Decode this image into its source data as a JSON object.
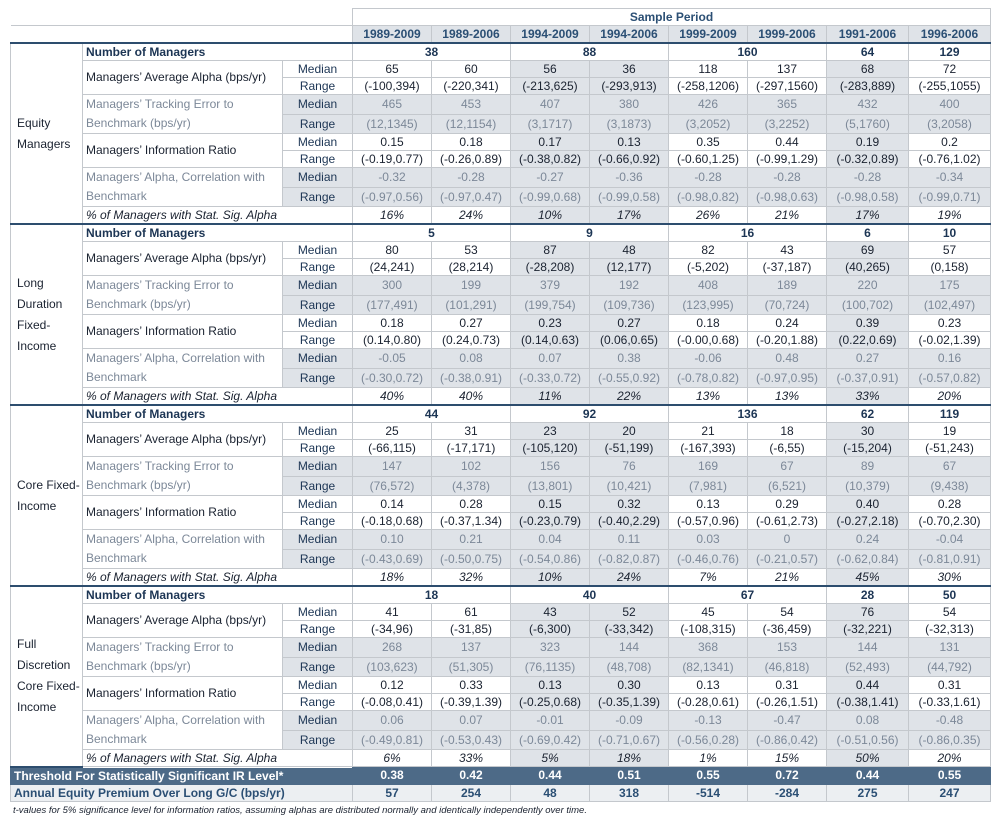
{
  "header": {
    "sample_period": "Sample Period",
    "periods": [
      "1989-2009",
      "1989-2006",
      "1994-2009",
      "1994-2006",
      "1999-2009",
      "1999-2006",
      "1991-2006",
      "1996-2006"
    ]
  },
  "labels": {
    "num_managers": "Number of Managers",
    "avg_alpha": "Managers’ Average Alpha (bps/yr)",
    "tracking_error": "Managers’ Tracking Error to Benchmark (bps/yr)",
    "info_ratio": "Managers’ Information Ratio",
    "alpha_corr": "Managers’ Alpha, Correlation with Benchmark",
    "median": "Median",
    "range": "Range",
    "pct_sig": "% of Managers with Stat. Sig. Alpha"
  },
  "sections": [
    {
      "name": "Equity Managers",
      "num_managers": [
        "38",
        "88",
        "160",
        "64",
        "129"
      ],
      "avg_alpha": {
        "median": [
          "65",
          "60",
          "56",
          "36",
          "118",
          "137",
          "68",
          "72"
        ],
        "range": [
          "(-100,394)",
          "(-220,341)",
          "(-213,625)",
          "(-293,913)",
          "(-258,1206)",
          "(-297,1560)",
          "(-283,889)",
          "(-255,1055)"
        ]
      },
      "tracking_error": {
        "median": [
          "465",
          "453",
          "407",
          "380",
          "426",
          "365",
          "432",
          "400"
        ],
        "range": [
          "(12,1345)",
          "(12,1154)",
          "(3,1717)",
          "(3,1873)",
          "(3,2052)",
          "(3,2252)",
          "(5,1760)",
          "(3,2058)"
        ]
      },
      "info_ratio": {
        "median": [
          "0.15",
          "0.18",
          "0.17",
          "0.13",
          "0.35",
          "0.44",
          "0.19",
          "0.2"
        ],
        "range": [
          "(-0.19,0.77)",
          "(-0.26,0.89)",
          "(-0.38,0.82)",
          "(-0.66,0.92)",
          "(-0.60,1.25)",
          "(-0.99,1.29)",
          "(-0.32,0.89)",
          "(-0.76,1.02)"
        ]
      },
      "alpha_corr": {
        "median": [
          "-0.32",
          "-0.28",
          "-0.27",
          "-0.36",
          "-0.28",
          "-0.28",
          "-0.28",
          "-0.34"
        ],
        "range": [
          "(-0.97,0.56)",
          "(-0.97,0.47)",
          "(-0.99,0.68)",
          "(-0.99,0.58)",
          "(-0.98,0.82)",
          "(-0.98,0.63)",
          "(-0.98,0.58)",
          "(-0.99,0.71)"
        ]
      },
      "pct_sig": [
        "16%",
        "24%",
        "10%",
        "17%",
        "26%",
        "21%",
        "17%",
        "19%"
      ]
    },
    {
      "name": "Long Duration Fixed-Income",
      "num_managers": [
        "5",
        "9",
        "16",
        "6",
        "10"
      ],
      "avg_alpha": {
        "median": [
          "80",
          "53",
          "87",
          "48",
          "82",
          "43",
          "69",
          "57"
        ],
        "range": [
          "(24,241)",
          "(28,214)",
          "(-28,208)",
          "(12,177)",
          "(-5,202)",
          "(-37,187)",
          "(40,265)",
          "(0,158)"
        ]
      },
      "tracking_error": {
        "median": [
          "300",
          "199",
          "379",
          "192",
          "408",
          "189",
          "220",
          "175"
        ],
        "range": [
          "(177,491)",
          "(101,291)",
          "(199,754)",
          "(109,736)",
          "(123,995)",
          "(70,724)",
          "(100,702)",
          "(102,497)"
        ]
      },
      "info_ratio": {
        "median": [
          "0.18",
          "0.27",
          "0.23",
          "0.27",
          "0.18",
          "0.24",
          "0.39",
          "0.23"
        ],
        "range": [
          "(0.14,0.80)",
          "(0.24,0.73)",
          "(0.14,0.63)",
          "(0.06,0.65)",
          "(-0.00,0.68)",
          "(-0.20,1.88)",
          "(0.22,0.69)",
          "(-0.02,1.39)"
        ]
      },
      "alpha_corr": {
        "median": [
          "-0.05",
          "0.08",
          "0.07",
          "0.38",
          "-0.06",
          "0.48",
          "0.27",
          "0.16"
        ],
        "range": [
          "(-0.30,0.72)",
          "(-0.38,0.91)",
          "(-0.33,0.72)",
          "(-0.55,0.92)",
          "(-0.78,0.82)",
          "(-0.97,0.95)",
          "(-0.37,0.91)",
          "(-0.57,0.82)"
        ]
      },
      "pct_sig": [
        "40%",
        "40%",
        "11%",
        "22%",
        "13%",
        "13%",
        "33%",
        "20%"
      ]
    },
    {
      "name": "Core Fixed-Income",
      "num_managers": [
        "44",
        "92",
        "136",
        "62",
        "119"
      ],
      "avg_alpha": {
        "median": [
          "25",
          "31",
          "23",
          "20",
          "21",
          "18",
          "30",
          "19"
        ],
        "range": [
          "(-66,115)",
          "(-17,171)",
          "(-105,120)",
          "(-51,199)",
          "(-167,393)",
          "(-6,55)",
          "(-15,204)",
          "(-51,243)"
        ]
      },
      "tracking_error": {
        "median": [
          "147",
          "102",
          "156",
          "76",
          "169",
          "67",
          "89",
          "67"
        ],
        "range": [
          "(76,572)",
          "(4,378)",
          "(13,801)",
          "(10,421)",
          "(7,981)",
          "(6,521)",
          "(10,379)",
          "(9,438)"
        ]
      },
      "info_ratio": {
        "median": [
          "0.14",
          "0.28",
          "0.15",
          "0.32",
          "0.13",
          "0.29",
          "0.40",
          "0.28"
        ],
        "range": [
          "(-0.18,0.68)",
          "(-0.37,1.34)",
          "(-0.23,0.79)",
          "(-0.40,2.29)",
          "(-0.57,0.96)",
          "(-0.61,2.73)",
          "(-0.27,2.18)",
          "(-0.70,2.30)"
        ]
      },
      "alpha_corr": {
        "median": [
          "0.10",
          "0.21",
          "0.04",
          "0.11",
          "0.03",
          "0",
          "0.24",
          "-0.04"
        ],
        "range": [
          "(-0.43,0.69)",
          "(-0.50,0.75)",
          "(-0.54,0.86)",
          "(-0.82,0.87)",
          "(-0.46,0.76)",
          "(-0.21,0.57)",
          "(-0.62,0.84)",
          "(-0.81,0.91)"
        ]
      },
      "pct_sig": [
        "18%",
        "32%",
        "10%",
        "24%",
        "7%",
        "21%",
        "45%",
        "30%"
      ]
    },
    {
      "name": "Full Discretion Core Fixed-Income",
      "num_managers": [
        "18",
        "40",
        "67",
        "28",
        "50"
      ],
      "avg_alpha": {
        "median": [
          "41",
          "61",
          "43",
          "52",
          "45",
          "54",
          "76",
          "54"
        ],
        "range": [
          "(-34,96)",
          "(-31,85)",
          "(-6,300)",
          "(-33,342)",
          "(-108,315)",
          "(-36,459)",
          "(-32,221)",
          "(-32,313)"
        ]
      },
      "tracking_error": {
        "median": [
          "268",
          "137",
          "323",
          "144",
          "368",
          "153",
          "144",
          "131"
        ],
        "range": [
          "(103,623)",
          "(51,305)",
          "(76,1135)",
          "(48,708)",
          "(82,1341)",
          "(46,818)",
          "(52,493)",
          "(44,792)"
        ]
      },
      "info_ratio": {
        "median": [
          "0.12",
          "0.33",
          "0.13",
          "0.30",
          "0.13",
          "0.31",
          "0.44",
          "0.31"
        ],
        "range": [
          "(-0.08,0.41)",
          "(-0.39,1.39)",
          "(-0.25,0.68)",
          "(-0.35,1.39)",
          "(-0.28,0.61)",
          "(-0.26,1.51)",
          "(-0.38,1.41)",
          "(-0.33,1.61)"
        ]
      },
      "alpha_corr": {
        "median": [
          "0.06",
          "0.07",
          "-0.01",
          "-0.09",
          "-0.13",
          "-0.47",
          "0.08",
          "-0.48"
        ],
        "range": [
          "(-0.49,0.81)",
          "(-0.53,0.43)",
          "(-0.69,0.42)",
          "(-0.71,0.67)",
          "(-0.56,0.28)",
          "(-0.86,0.42)",
          "(-0.51,0.56)",
          "(-0.86,0.35)"
        ]
      },
      "pct_sig": [
        "6%",
        "33%",
        "5%",
        "18%",
        "1%",
        "15%",
        "50%",
        "20%"
      ]
    }
  ],
  "threshold": {
    "label": "Threshold For Statistically Significant IR Level*",
    "values": [
      "0.38",
      "0.42",
      "0.44",
      "0.51",
      "0.55",
      "0.72",
      "0.44",
      "0.55"
    ]
  },
  "premium": {
    "label": "Annual Equity Premium Over Long G/C (bps/yr)",
    "values": [
      "57",
      "254",
      "48",
      "318",
      "-514",
      "-284",
      "275",
      "247"
    ]
  },
  "footnote": "t-values for 5% significance level for information ratios, assuming alphas are distributed normally and identically independently over time.",
  "colors": {
    "header_text": "#2b4f74",
    "band_bg": "#4d6a87",
    "value_shade": "#dfe3e8",
    "section_rule": "#2d4d6e"
  }
}
